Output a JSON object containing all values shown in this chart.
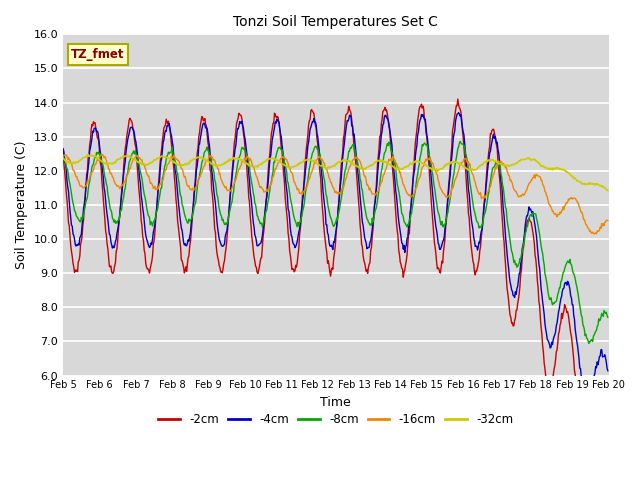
{
  "title": "Tonzi Soil Temperatures Set C",
  "xlabel": "Time",
  "ylabel": "Soil Temperature (C)",
  "ylim": [
    6.0,
    16.0
  ],
  "yticks": [
    6.0,
    7.0,
    8.0,
    9.0,
    10.0,
    11.0,
    12.0,
    13.0,
    14.0,
    15.0,
    16.0
  ],
  "plot_bg": "#d8d8d8",
  "fig_bg": "#ffffff",
  "grid_color": "#ffffff",
  "legend_label": "TZ_fmet",
  "series_colors": {
    "-2cm": "#cc0000",
    "-4cm": "#0000cc",
    "-8cm": "#00aa00",
    "-16cm": "#ee8800",
    "-32cm": "#cccc00"
  },
  "xtick_labels": [
    "Feb 5",
    "Feb 6",
    "Feb 7",
    "Feb 8",
    "Feb 9",
    "Feb 10",
    "Feb 11",
    "Feb 12",
    "Feb 13",
    "Feb 14",
    "Feb 15",
    "Feb 16",
    "Feb 17",
    "Feb 18",
    "Feb 19",
    "Feb 20"
  ],
  "n_days": 15,
  "pts_per_day": 48
}
